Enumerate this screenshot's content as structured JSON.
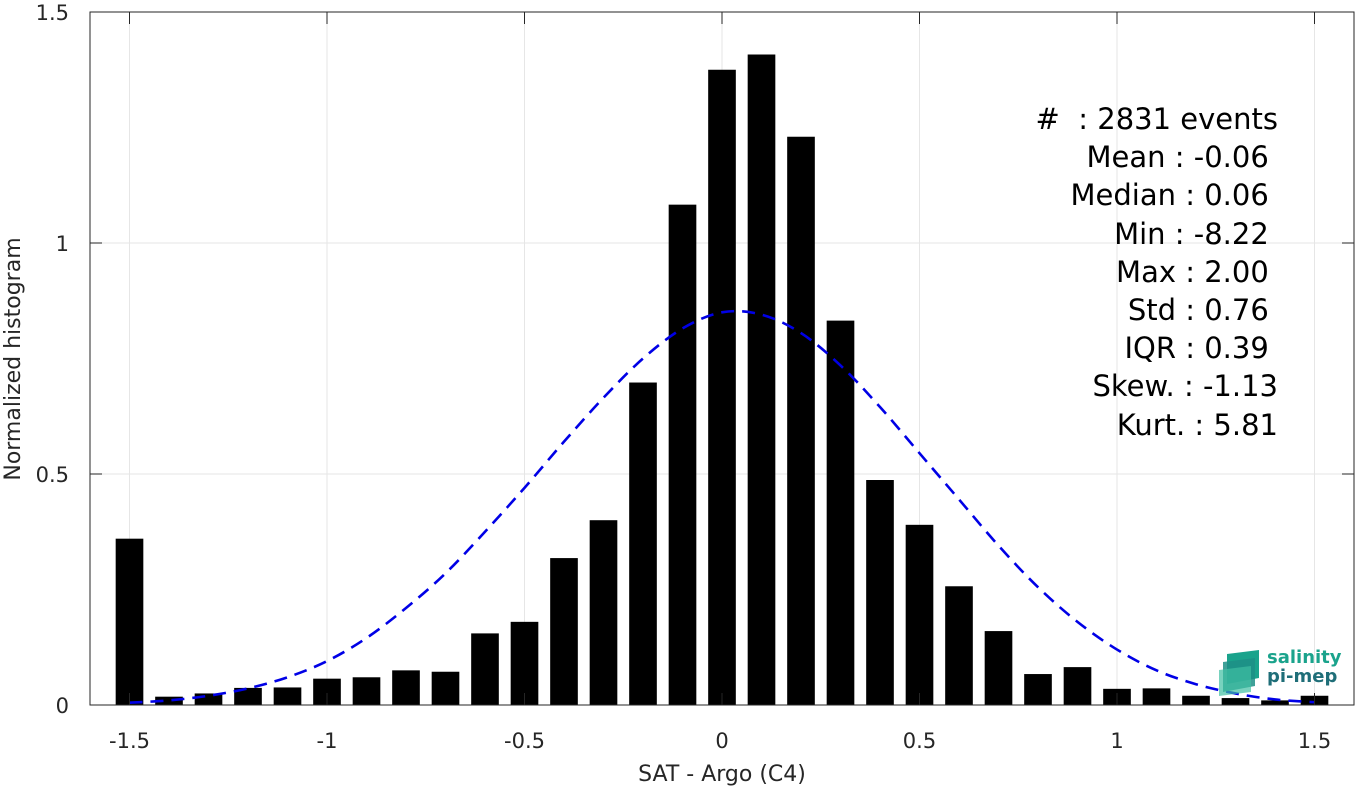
{
  "chart_data": {
    "type": "bar",
    "xlabel": "SAT - Argo (C4)",
    "ylabel": "Normalized histogram",
    "xlim": [
      -1.6,
      1.6
    ],
    "ylim": [
      0,
      1.5
    ],
    "xticks": [
      -1.5,
      -1,
      -0.5,
      0,
      0.5,
      1,
      1.5
    ],
    "xtick_labels": [
      "-1.5",
      "-1",
      "-0.5",
      "0",
      "0.5",
      "1",
      "1.5"
    ],
    "yticks": [
      0,
      0.5,
      1,
      1.5
    ],
    "ytick_labels": [
      "0",
      "0.5",
      "1",
      "1.5"
    ],
    "grid": true,
    "bar_width": 0.07,
    "bar_color": "#000000",
    "bars": {
      "x": [
        -1.5,
        -1.4,
        -1.3,
        -1.2,
        -1.1,
        -1.0,
        -0.9,
        -0.8,
        -0.7,
        -0.6,
        -0.5,
        -0.4,
        -0.3,
        -0.2,
        -0.1,
        0.0,
        0.1,
        0.2,
        0.3,
        0.4,
        0.5,
        0.6,
        0.7,
        0.8,
        0.9,
        1.0,
        1.1,
        1.2,
        1.3,
        1.4,
        1.5
      ],
      "values": [
        0.36,
        0.018,
        0.025,
        0.037,
        0.038,
        0.057,
        0.06,
        0.075,
        0.072,
        0.155,
        0.18,
        0.318,
        0.4,
        0.698,
        1.083,
        1.375,
        1.408,
        1.23,
        0.832,
        0.487,
        0.39,
        0.257,
        0.16,
        0.067,
        0.082,
        0.035,
        0.036,
        0.02,
        0.015,
        0.01,
        0.02
      ]
    },
    "fit_curve": {
      "name": "",
      "style": "dashed",
      "color": "#0000e6",
      "x": [
        -1.5,
        -1.4,
        -1.3,
        -1.2,
        -1.1,
        -1.0,
        -0.9,
        -0.8,
        -0.7,
        -0.6,
        -0.5,
        -0.4,
        -0.3,
        -0.2,
        -0.1,
        0.0,
        0.1,
        0.2,
        0.3,
        0.4,
        0.5,
        0.6,
        0.7,
        0.8,
        0.9,
        1.0,
        1.1,
        1.2,
        1.3,
        1.4,
        1.5
      ],
      "y": [
        0.005,
        0.01,
        0.02,
        0.036,
        0.06,
        0.095,
        0.145,
        0.21,
        0.285,
        0.375,
        0.47,
        0.57,
        0.665,
        0.75,
        0.815,
        0.85,
        0.845,
        0.805,
        0.735,
        0.645,
        0.545,
        0.445,
        0.345,
        0.255,
        0.18,
        0.12,
        0.075,
        0.045,
        0.025,
        0.012,
        0.006
      ]
    }
  },
  "stats": [
    "#  : 2831 events",
    "Mean : -0.06 ",
    "Median : 0.06 ",
    "Min : -8.22 ",
    "Max : 2.00 ",
    "Std : 0.76 ",
    "IQR : 0.39 ",
    "Skew. : -1.13",
    "Kurt. : 5.81"
  ],
  "logo": {
    "line1": "salinity",
    "line2": "pi-mep",
    "color_line1": "#1aa38c",
    "color_line2": "#1f6e78"
  }
}
